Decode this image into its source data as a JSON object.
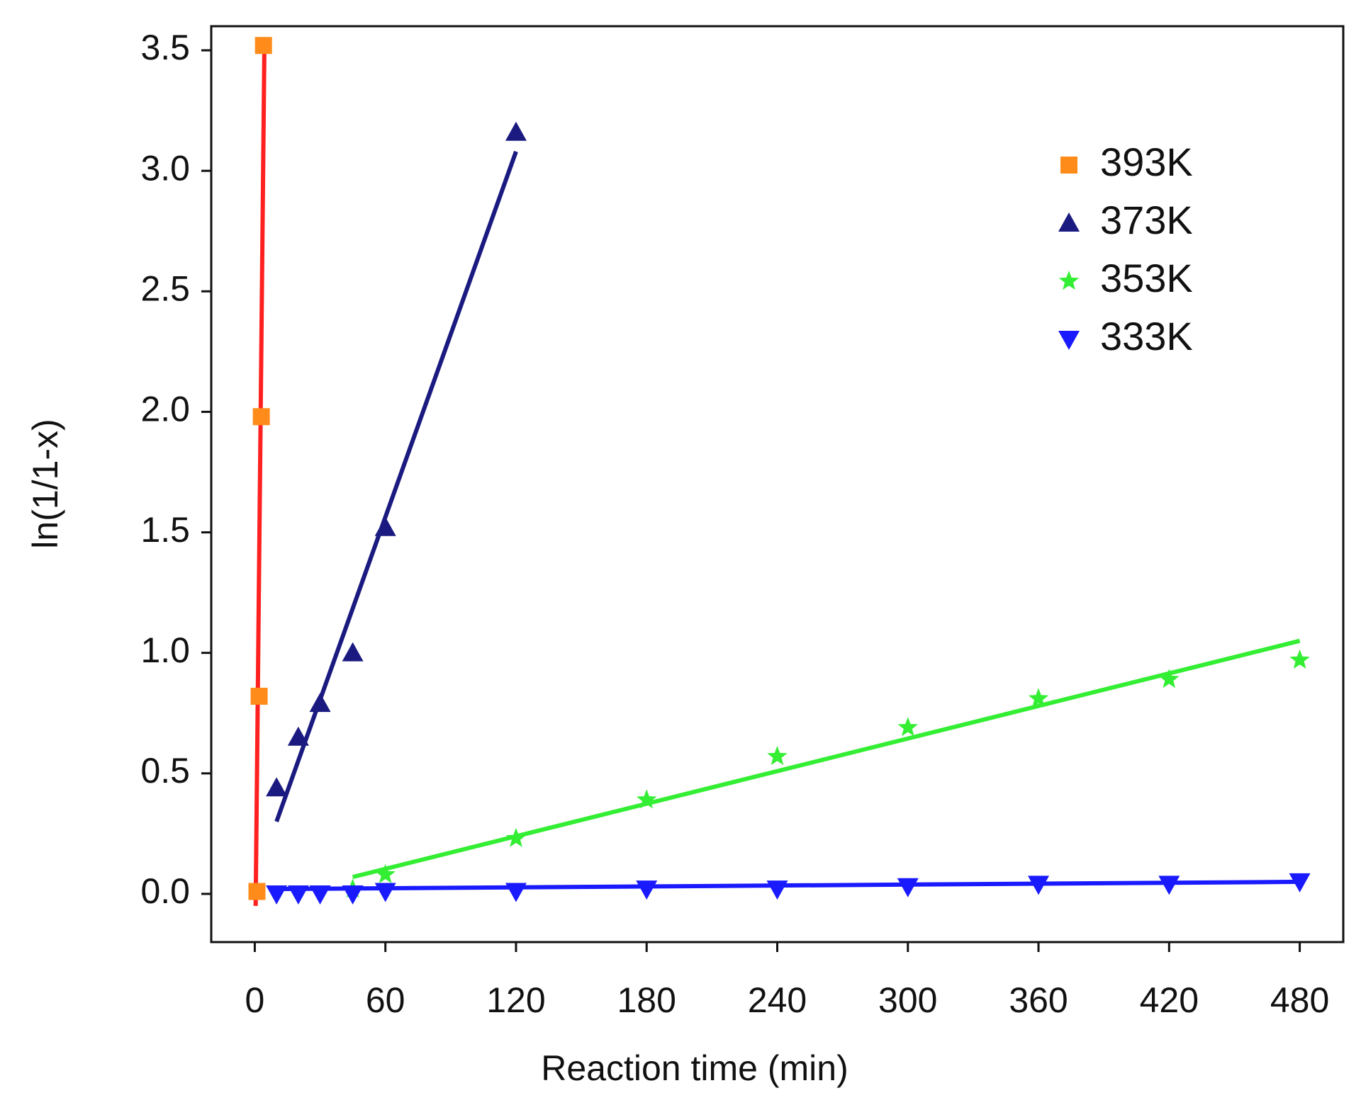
{
  "chart_data": {
    "type": "scatter",
    "xlabel": "Reaction time (min)",
    "ylabel": "ln(1/1-x)",
    "xlim": [
      -20,
      500
    ],
    "ylim": [
      -0.2,
      3.6
    ],
    "xticks": [
      0,
      60,
      120,
      180,
      240,
      300,
      360,
      420,
      480
    ],
    "yticks": [
      {
        "value": 0,
        "label": "0.0"
      },
      0.5,
      {
        "value": 1,
        "label": "1.0"
      },
      1.5,
      {
        "value": 2,
        "label": "2.0"
      },
      2.5,
      {
        "value": 3,
        "label": "3.0"
      },
      3.5
    ],
    "legend": "upper right",
    "series": [
      {
        "name": "393K",
        "color": "#ff8c1a",
        "marker": "square",
        "line_color": "#ff2020",
        "x": [
          1,
          2,
          3,
          4
        ],
        "values": [
          0.01,
          0.82,
          1.98,
          3.52
        ],
        "fit": {
          "x": [
            0.4,
            4.4
          ],
          "y": [
            -0.05,
            3.5
          ]
        }
      },
      {
        "name": "373K",
        "color": "#1a1a80",
        "marker": "triangle",
        "line_color": "#1a1a80",
        "x": [
          10,
          20,
          30,
          45,
          60,
          120
        ],
        "values": [
          0.44,
          0.65,
          0.79,
          1.0,
          1.52,
          3.16
        ],
        "fit": {
          "x": [
            10,
            120
          ],
          "y": [
            0.3,
            3.08
          ]
        }
      },
      {
        "name": "353K",
        "color": "#33ee33",
        "marker": "star",
        "line_color": "#33ee33",
        "x": [
          45,
          60,
          120,
          180,
          240,
          300,
          360,
          420,
          480
        ],
        "values": [
          0.02,
          0.08,
          0.23,
          0.39,
          0.57,
          0.69,
          0.81,
          0.89,
          0.97
        ],
        "fit": {
          "x": [
            45,
            480
          ],
          "y": [
            0.07,
            1.05
          ]
        }
      },
      {
        "name": "333K",
        "color": "#1a1aff",
        "marker": "down-triangle",
        "line_color": "#1a1aff",
        "x": [
          10,
          20,
          30,
          45,
          60,
          120,
          180,
          240,
          300,
          360,
          420,
          480
        ],
        "values": [
          0,
          0,
          0,
          0,
          0.01,
          0.01,
          0.02,
          0.02,
          0.03,
          0.04,
          0.04,
          0.05
        ],
        "fit": {
          "x": [
            10,
            480
          ],
          "y": [
            0.02,
            0.05
          ]
        }
      }
    ]
  }
}
